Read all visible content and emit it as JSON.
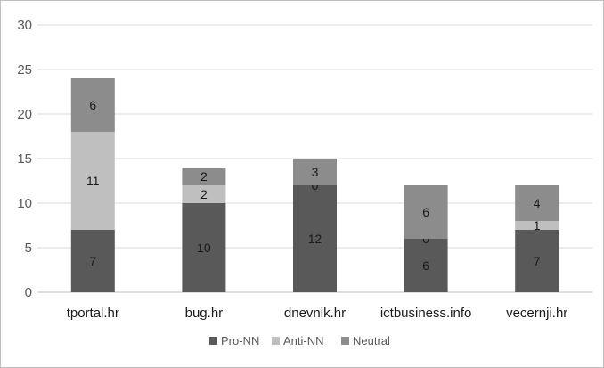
{
  "chart_data": {
    "type": "bar",
    "stacked": true,
    "categories": [
      "tportal.hr",
      "bug.hr",
      "dnevnik.hr",
      "ictbusiness.info",
      "vecernji.hr"
    ],
    "series": [
      {
        "name": "Pro-NN",
        "values": [
          7,
          10,
          12,
          6,
          7
        ],
        "color": "#595959"
      },
      {
        "name": "Anti-NN",
        "values": [
          11,
          2,
          0,
          0,
          1
        ],
        "color": "#bfbfbf"
      },
      {
        "name": "Neutral",
        "values": [
          6,
          2,
          3,
          6,
          4
        ],
        "color": "#8c8c8c"
      }
    ],
    "yticks": [
      "0",
      "5",
      "10",
      "15",
      "20",
      "25",
      "30"
    ],
    "ylim": [
      0,
      30
    ],
    "grid": true,
    "legend_position": "bottom"
  }
}
